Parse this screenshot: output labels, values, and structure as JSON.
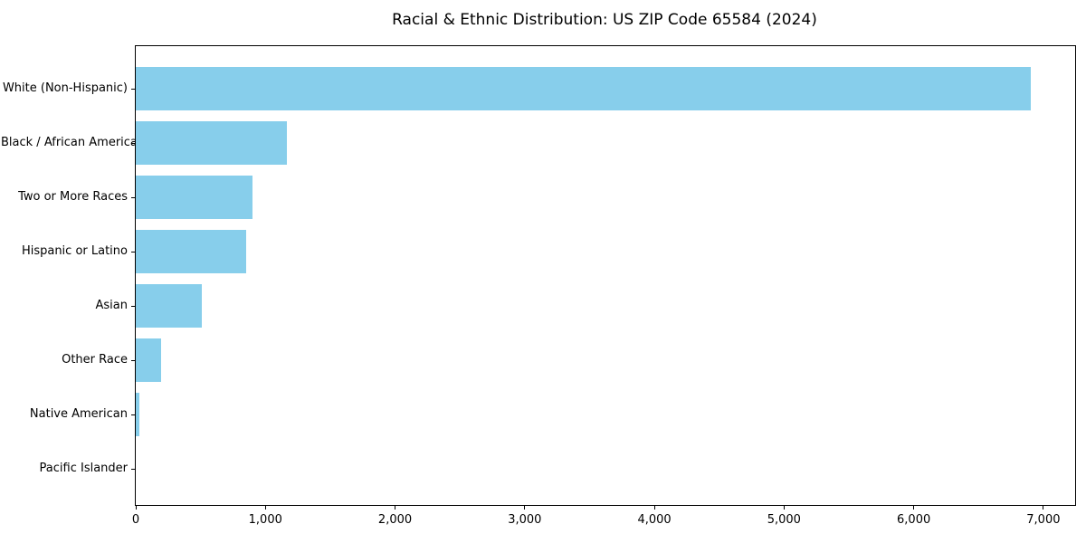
{
  "title": "Racial & Ethnic Distribution: US ZIP Code 65584 (2024)",
  "colors": {
    "bar": "#87CEEB",
    "axis": "#000000",
    "text": "#000000",
    "background": "#ffffff"
  },
  "chart_data": {
    "type": "bar",
    "orientation": "horizontal",
    "title": "Racial & Ethnic Distribution: US ZIP Code 65584 (2024)",
    "categories": [
      "White (Non-Hispanic)",
      "Black / African American",
      "Two or More Races",
      "Hispanic or Latino",
      "Asian",
      "Other Race",
      "Native American",
      "Pacific Islander"
    ],
    "values": [
      6900,
      1165,
      900,
      850,
      510,
      195,
      30,
      0
    ],
    "xlabel": "",
    "ylabel": "",
    "xlim": [
      0,
      7245
    ],
    "xticks": [
      0,
      1000,
      2000,
      3000,
      4000,
      5000,
      6000,
      7000
    ],
    "xtick_labels": [
      "0",
      "1,000",
      "2,000",
      "3,000",
      "4,000",
      "5,000",
      "6,000",
      "7,000"
    ],
    "grid": false,
    "legend": false,
    "bar_color": "#87CEEB"
  }
}
